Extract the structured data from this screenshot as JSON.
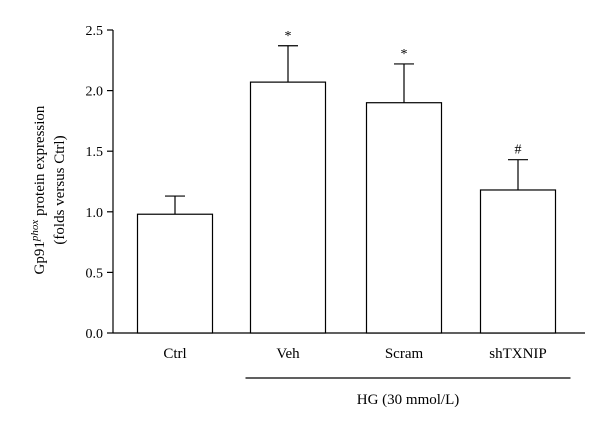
{
  "chart_data": {
    "type": "bar",
    "title": "",
    "ylabel_line1_prefix": "Gp91",
    "ylabel_line1_sup": "phox",
    "ylabel_line1_suffix": " protein expression",
    "ylabel_line2": "(folds versus Ctrl)",
    "xlabel": "",
    "ylim": [
      0,
      2.5
    ],
    "yticks": [
      "0.0",
      "0.5",
      "1.0",
      "1.5",
      "2.0",
      "2.5"
    ],
    "categories": [
      "Ctrl",
      "Veh",
      "Scram",
      "shTXNIP"
    ],
    "values": [
      0.98,
      2.07,
      1.9,
      1.18
    ],
    "errors": [
      0.15,
      0.3,
      0.32,
      0.25
    ],
    "annotations": [
      "",
      "*",
      "*",
      "#"
    ],
    "group_label": "HG (30 mmol/L)",
    "group_span": [
      1,
      3
    ],
    "grid": false,
    "legend": "none",
    "bar_fill": "#ffffff",
    "bar_stroke": "#000000"
  }
}
